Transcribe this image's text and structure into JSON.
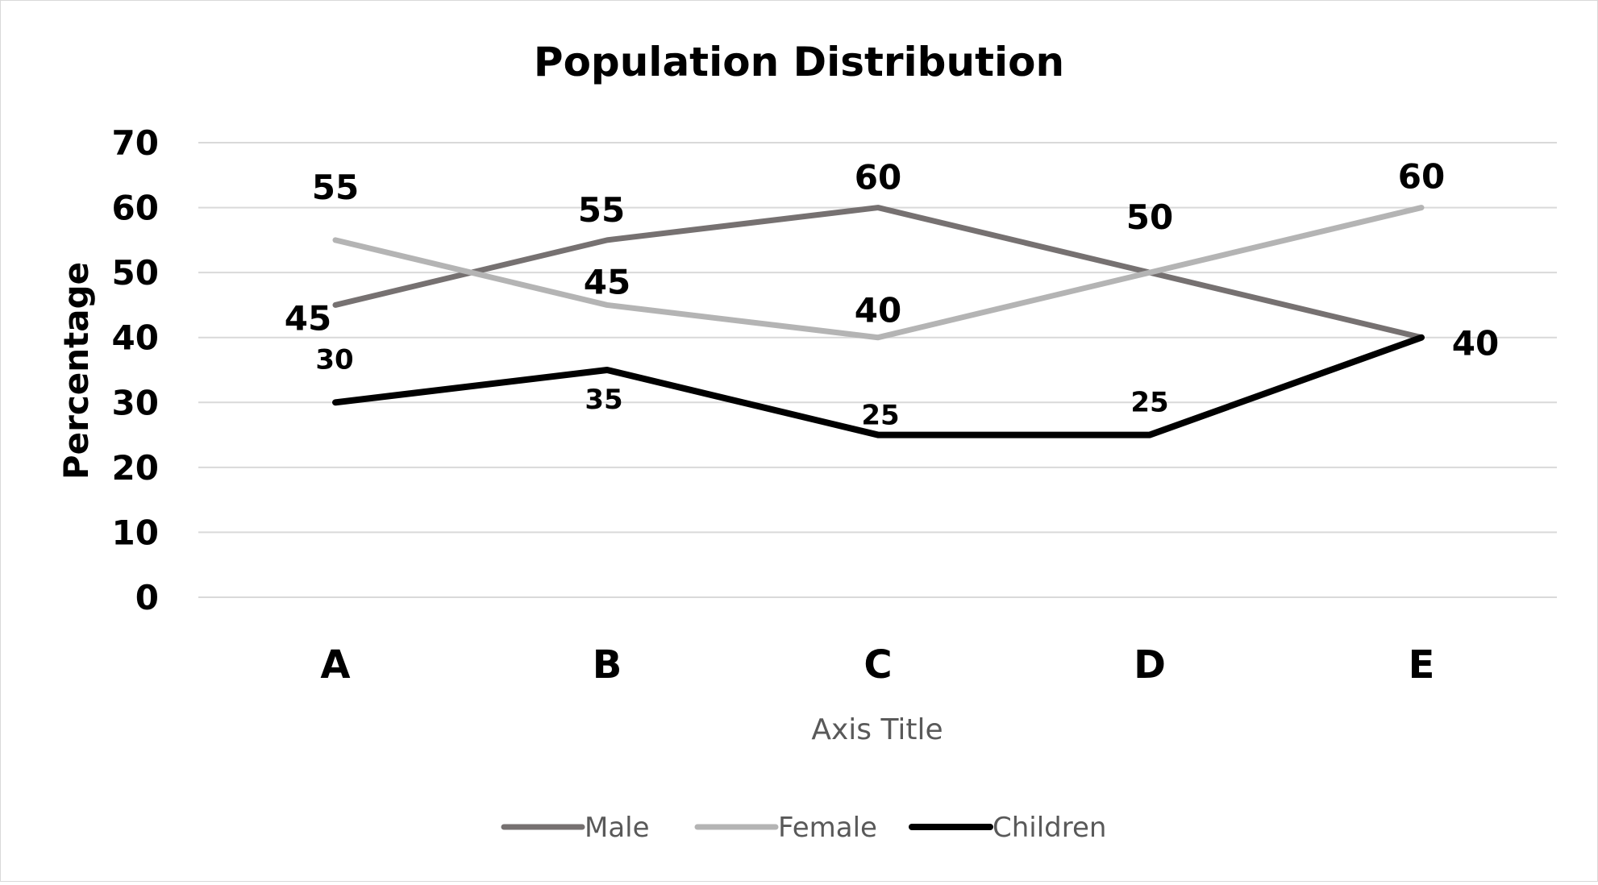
{
  "chart_data": {
    "type": "line",
    "title": "Population Distribution",
    "xlabel": "Axis Title",
    "ylabel": "Percentage",
    "categories": [
      "A",
      "B",
      "C",
      "D",
      "E"
    ],
    "ylim": [
      0,
      70
    ],
    "yticks": [
      0,
      10,
      20,
      30,
      40,
      50,
      60,
      70
    ],
    "grid": true,
    "legend_position": "bottom",
    "series": [
      {
        "name": "Male",
        "values": [
          45,
          55,
          60,
          50,
          40
        ],
        "color": "#767171"
      },
      {
        "name": "Female",
        "values": [
          55,
          45,
          40,
          50,
          60
        ],
        "color": "#b4b4b4"
      },
      {
        "name": "Children",
        "values": [
          30,
          35,
          25,
          25,
          40
        ],
        "color": "#000000"
      }
    ]
  }
}
